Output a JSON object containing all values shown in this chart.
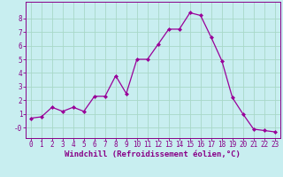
{
  "x": [
    0,
    1,
    2,
    3,
    4,
    5,
    6,
    7,
    8,
    9,
    10,
    11,
    12,
    13,
    14,
    15,
    16,
    17,
    18,
    19,
    20,
    21,
    22,
    23
  ],
  "y": [
    0.7,
    0.8,
    1.5,
    1.2,
    1.5,
    1.2,
    2.3,
    2.3,
    3.8,
    2.5,
    5.0,
    5.0,
    6.1,
    7.2,
    7.2,
    8.4,
    8.2,
    6.6,
    4.9,
    2.2,
    1.0,
    -0.1,
    -0.2,
    -0.3
  ],
  "line_color": "#990099",
  "marker": "D",
  "markersize": 2.0,
  "linewidth": 0.9,
  "xlabel": "Windchill (Refroidissement éolien,°C)",
  "xlim": [
    -0.5,
    23.5
  ],
  "ylim": [
    -0.75,
    9.2
  ],
  "yticks": [
    0,
    1,
    2,
    3,
    4,
    5,
    6,
    7,
    8
  ],
  "ytick_labels": [
    "-0",
    "1",
    "2",
    "3",
    "4",
    "5",
    "6",
    "7",
    "8"
  ],
  "xticks": [
    0,
    1,
    2,
    3,
    4,
    5,
    6,
    7,
    8,
    9,
    10,
    11,
    12,
    13,
    14,
    15,
    16,
    17,
    18,
    19,
    20,
    21,
    22,
    23
  ],
  "bg_color": "#c8eef0",
  "grid_color": "#a8d8c8",
  "label_color": "#880088",
  "tick_color": "#880088",
  "font_size": 5.5,
  "xlabel_fontsize": 6.5
}
